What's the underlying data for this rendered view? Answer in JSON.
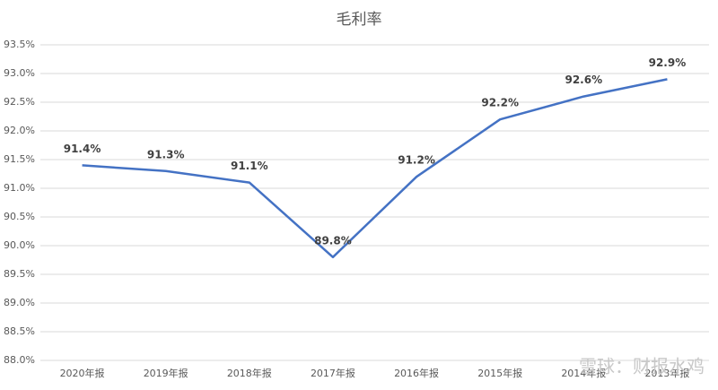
{
  "chart_data": {
    "type": "line",
    "title": "毛利率",
    "categories": [
      "2020年报",
      "2019年报",
      "2018年报",
      "2017年报",
      "2016年报",
      "2015年报",
      "2014年报",
      "2013年报"
    ],
    "values": [
      91.4,
      91.3,
      91.1,
      89.8,
      91.2,
      92.2,
      92.6,
      92.9
    ],
    "value_labels": [
      "91.4%",
      "91.3%",
      "91.1%",
      "89.8%",
      "91.2%",
      "92.2%",
      "92.6%",
      "92.9%"
    ],
    "color": "#4472c4",
    "ylim": [
      88.0,
      93.5
    ],
    "yticks": [
      {
        "value": 88.0,
        "label": "88.0%"
      },
      {
        "value": 88.5,
        "label": "88.5%"
      },
      {
        "value": 89.0,
        "label": "89.0%"
      },
      {
        "value": 89.5,
        "label": "89.5%"
      },
      {
        "value": 90.0,
        "label": "90.0%"
      },
      {
        "value": 90.5,
        "label": "90.5%"
      },
      {
        "value": 91.0,
        "label": "91.0%"
      },
      {
        "value": 91.5,
        "label": "91.5%"
      },
      {
        "value": 92.0,
        "label": "92.0%"
      },
      {
        "value": 92.5,
        "label": "92.5%"
      },
      {
        "value": 93.0,
        "label": "93.0%"
      },
      {
        "value": 93.5,
        "label": "93.5%"
      }
    ],
    "grid": true,
    "watermark": "雪球：财报水鸡"
  }
}
